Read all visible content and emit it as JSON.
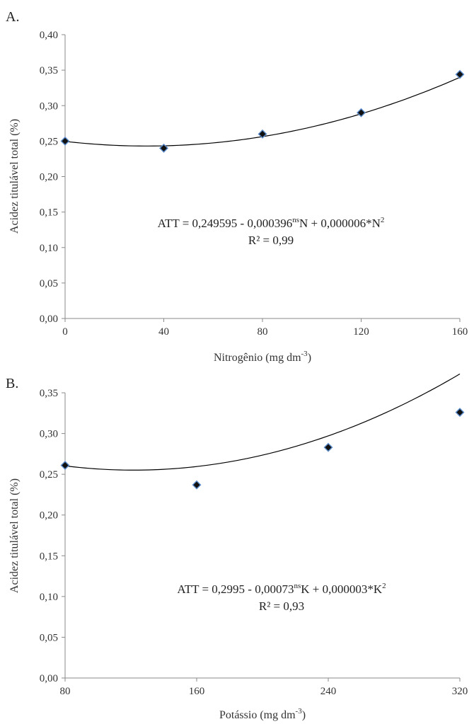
{
  "chart_data": [
    {
      "type": "scatter",
      "panel_label": "A.",
      "xlabel": "Nitrogênio (mg dm",
      "xlabel_sup": "-3",
      "xlabel_end": ")",
      "ylabel": "Acidez titulável total (%)",
      "x": [
        0,
        40,
        80,
        120,
        160
      ],
      "y": [
        0.25,
        0.24,
        0.26,
        0.29,
        0.344
      ],
      "xticks": [
        "0",
        "40",
        "80",
        "120",
        "160"
      ],
      "xtick_values": [
        0,
        40,
        80,
        120,
        160
      ],
      "xlim": [
        0,
        160
      ],
      "yticks": [
        "0,00",
        "0,05",
        "0,10",
        "0,15",
        "0,20",
        "0,25",
        "0,30",
        "0,35",
        "0,40"
      ],
      "ylim": [
        0,
        0.4
      ],
      "fit": {
        "a": 0.249595,
        "b": -0.000396,
        "c": 6e-06
      },
      "equation": {
        "p1": "ATT = 0,249595 - 0,000396",
        "sup1": "ns",
        "p2": "N + 0,000006*N",
        "sup2": "2",
        "r2": "R² = 0,99"
      },
      "grid": false
    },
    {
      "type": "scatter",
      "panel_label": "B.",
      "xlabel": "Potássio (mg dm",
      "xlabel_sup": "-3",
      "xlabel_end": ")",
      "ylabel": "Acidez titulável total (%)",
      "x": [
        80,
        160,
        240,
        320
      ],
      "y": [
        0.261,
        0.237,
        0.283,
        0.326
      ],
      "xticks": [
        "80",
        "160",
        "240",
        "320"
      ],
      "xtick_values": [
        80,
        160,
        240,
        320
      ],
      "xlim": [
        80,
        320
      ],
      "yticks": [
        "0,00",
        "0,05",
        "0,10",
        "0,15",
        "0,20",
        "0,25",
        "0,30",
        "0,35"
      ],
      "ylim": [
        0,
        0.35
      ],
      "fit": {
        "a": 0.2995,
        "b": -0.00073,
        "c": 3e-06
      },
      "equation": {
        "p1": "ATT = 0,2995 - 0,00073",
        "sup1": "ns",
        "p2": "K + 0,000003*K",
        "sup2": "2",
        "r2": "R² = 0,93"
      },
      "grid": false
    }
  ]
}
